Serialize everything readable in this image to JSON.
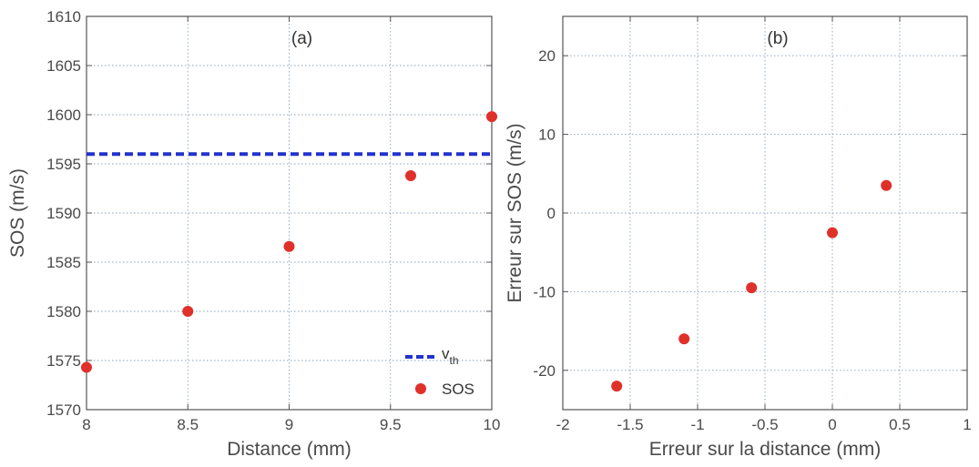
{
  "chart_data": [
    {
      "type": "scatter",
      "panel_label": "(a)",
      "xlabel": "Distance (mm)",
      "ylabel": "SOS (m/s)",
      "xlim": [
        8,
        10
      ],
      "ylim": [
        1570,
        1610
      ],
      "xticks": [
        8,
        8.5,
        9,
        9.5,
        10
      ],
      "xtick_labels": [
        "8",
        "8.5",
        "9",
        "9.5",
        "10"
      ],
      "yticks": [
        1570,
        1575,
        1580,
        1585,
        1590,
        1595,
        1600,
        1605,
        1610
      ],
      "ytick_labels": [
        "1570",
        "1575",
        "1580",
        "1585",
        "1590",
        "1595",
        "1600",
        "1605",
        "1610"
      ],
      "grid": true,
      "legend_position": "bottom-right",
      "reference_line": {
        "name_main": "v",
        "name_sub": "th",
        "y": 1596,
        "style": "dashed",
        "color": "#2233cc"
      },
      "series": [
        {
          "name": "SOS",
          "color": "#e0302a",
          "x": [
            8,
            8.5,
            9,
            9.6,
            10
          ],
          "y": [
            1574.3,
            1580,
            1586.6,
            1593.8,
            1599.8
          ]
        }
      ]
    },
    {
      "type": "scatter",
      "panel_label": "(b)",
      "xlabel": "Erreur sur la distance (mm)",
      "ylabel": "Erreur sur SOS (m/s)",
      "xlim": [
        -2,
        1
      ],
      "ylim": [
        -25,
        25
      ],
      "xticks": [
        -2,
        -1.5,
        -1,
        -0.5,
        0,
        0.5,
        1
      ],
      "xtick_labels": [
        "-2",
        "-1.5",
        "-1",
        "-0.5",
        "0",
        "0.5",
        "1"
      ],
      "yticks": [
        -20,
        -10,
        0,
        10,
        20
      ],
      "ytick_labels": [
        "-20",
        "-10",
        "0",
        "10",
        "20"
      ],
      "grid": true,
      "series": [
        {
          "color": "#e0302a",
          "x": [
            -1.6,
            -1.1,
            -0.6,
            0,
            0.4
          ],
          "y": [
            -22,
            -16,
            -9.5,
            -2.5,
            3.5
          ]
        }
      ]
    }
  ]
}
